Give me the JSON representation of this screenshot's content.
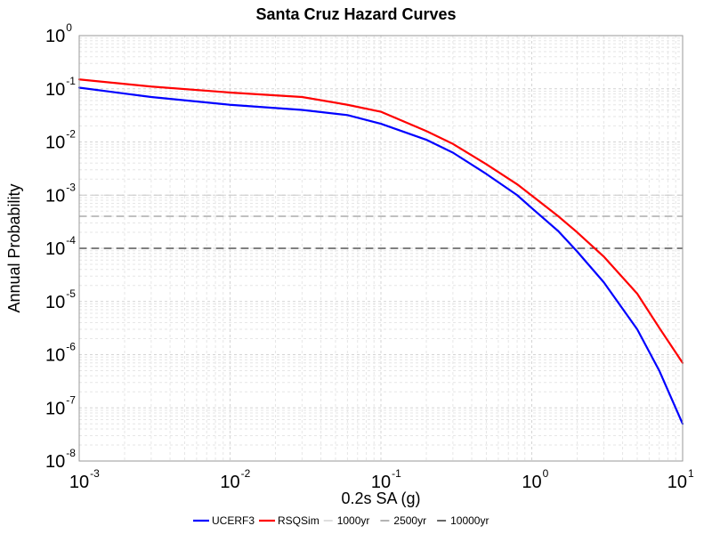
{
  "chart_data": {
    "type": "line",
    "title": "Santa Cruz Hazard Curves",
    "xlabel": "0.2s SA (g)",
    "ylabel": "Annual Probability",
    "xscale": "log",
    "yscale": "log",
    "xlim": [
      0.001,
      10
    ],
    "ylim": [
      1e-08,
      1
    ],
    "grid": true,
    "legend_position": "bottom",
    "x_ticks": [
      {
        "base": "10",
        "exp": "-3",
        "value": 0.001
      },
      {
        "base": "10",
        "exp": "-2",
        "value": 0.01
      },
      {
        "base": "10",
        "exp": "-1",
        "value": 0.1
      },
      {
        "base": "10",
        "exp": "0",
        "value": 1
      },
      {
        "base": "10",
        "exp": "1",
        "value": 10
      }
    ],
    "y_ticks": [
      {
        "base": "10",
        "exp": "0",
        "value": 1
      },
      {
        "base": "10",
        "exp": "-1",
        "value": 0.1
      },
      {
        "base": "10",
        "exp": "-2",
        "value": 0.01
      },
      {
        "base": "10",
        "exp": "-3",
        "value": 0.001
      },
      {
        "base": "10",
        "exp": "-4",
        "value": 0.0001
      },
      {
        "base": "10",
        "exp": "-5",
        "value": 1e-05
      },
      {
        "base": "10",
        "exp": "-6",
        "value": 1e-06
      },
      {
        "base": "10",
        "exp": "-7",
        "value": 1e-07
      },
      {
        "base": "10",
        "exp": "-8",
        "value": 1e-08
      }
    ],
    "series": [
      {
        "name": "UCERF3",
        "color": "#0000ff",
        "style": "solid",
        "x": [
          0.001,
          0.003,
          0.01,
          0.03,
          0.06,
          0.1,
          0.2,
          0.3,
          0.5,
          0.8,
          1.0,
          1.5,
          2.0,
          3.0,
          5.0,
          7.0,
          10.0
        ],
        "y": [
          0.105,
          0.07,
          0.05,
          0.04,
          0.032,
          0.022,
          0.011,
          0.0063,
          0.0025,
          0.001,
          0.00057,
          0.00021,
          8.7e-05,
          2.3e-05,
          3e-06,
          5e-07,
          5e-08
        ]
      },
      {
        "name": "RSQSim",
        "color": "#ff0000",
        "style": "solid",
        "x": [
          0.001,
          0.003,
          0.01,
          0.03,
          0.06,
          0.1,
          0.2,
          0.3,
          0.5,
          0.8,
          1.0,
          1.5,
          2.0,
          3.0,
          5.0,
          7.0,
          10.0
        ],
        "y": [
          0.15,
          0.11,
          0.085,
          0.07,
          0.05,
          0.037,
          0.016,
          0.0092,
          0.0038,
          0.0016,
          0.00098,
          0.0004,
          0.0002,
          7e-05,
          1.4e-05,
          3.2e-06,
          7e-07
        ]
      },
      {
        "name": "1000yr",
        "color": "#c8c8c8",
        "style": "dashed",
        "x": [
          0.001,
          10.0
        ],
        "y": [
          0.001,
          0.001
        ]
      },
      {
        "name": "2500yr",
        "color": "#808080",
        "style": "dashed",
        "x": [
          0.001,
          10.0
        ],
        "y": [
          0.0004,
          0.0004
        ]
      },
      {
        "name": "10000yr",
        "color": "#000000",
        "style": "dashed",
        "x": [
          0.001,
          10.0
        ],
        "y": [
          0.0001,
          0.0001
        ]
      }
    ]
  }
}
